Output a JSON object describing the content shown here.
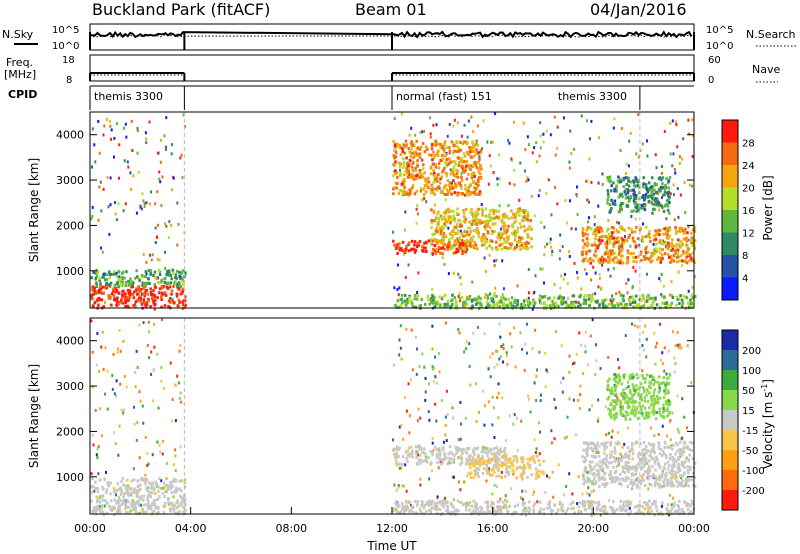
{
  "header": {
    "station_title": "Buckland Park (fitACF)",
    "beam": "Beam 01",
    "date": "04/Jan/2016"
  },
  "meta_panels": {
    "nsky_label": "N.Sky",
    "nsearch_label": "N.Search",
    "freq_label_line1": "Freq.",
    "freq_label_line2": "[MHz]",
    "nave_label": "Nave",
    "cpid_label": "CPID",
    "noise_ticks": [
      "10^5",
      "10^0"
    ],
    "freq_ticks": [
      "18",
      "8"
    ],
    "nave_ticks": [
      "60",
      "0"
    ],
    "cpid_segments": [
      {
        "start_hour": 0.0,
        "end_hour": 3.75,
        "label": "themis 3300"
      },
      {
        "start_hour": 12.0,
        "end_hour": 21.85,
        "label": "normal (fast) 151"
      },
      {
        "start_hour": 21.85,
        "end_hour": 24.0,
        "label": "themis 3300"
      }
    ]
  },
  "chart_data": [
    {
      "type": "heatmap",
      "panel": "power",
      "xlabel": "",
      "ylabel": "Slant Range [km]",
      "xlim": [
        0,
        24
      ],
      "ylim": [
        180,
        4500
      ],
      "yticks": [
        1000,
        2000,
        3000,
        4000
      ],
      "colorbar": {
        "label": "Power [dB]",
        "ticks": [
          "4",
          "8",
          "12",
          "16",
          "20",
          "24",
          "28"
        ],
        "range": [
          0,
          30
        ],
        "colors": [
          "#0a1cff",
          "#2452a6",
          "#2f8a62",
          "#5db83d",
          "#b6dd2a",
          "#f6a60c",
          "#f36a10",
          "#ff1a10"
        ]
      },
      "regions": [
        {
          "start_hour": 0.0,
          "end_hour": 3.75,
          "range_km": [
            200,
            700
          ],
          "level_db": 28
        },
        {
          "start_hour": 0.0,
          "end_hour": 3.75,
          "range_km": [
            700,
            1050
          ],
          "level_db": 12
        },
        {
          "start_hour": 12.0,
          "end_hour": 15.0,
          "range_km": [
            1400,
            1700
          ],
          "level_db": 28
        },
        {
          "start_hour": 13.5,
          "end_hour": 17.5,
          "range_km": [
            1500,
            2400
          ],
          "level_db": 20
        },
        {
          "start_hour": 19.5,
          "end_hour": 24.0,
          "range_km": [
            1200,
            2000
          ],
          "level_db": 22
        },
        {
          "start_hour": 12.0,
          "end_hour": 24.0,
          "range_km": [
            200,
            500
          ],
          "level_db": 14
        },
        {
          "start_hour": 20.5,
          "end_hour": 23.0,
          "range_km": [
            2300,
            3100
          ],
          "level_db": 10
        },
        {
          "start_hour": 12.0,
          "end_hour": 15.5,
          "range_km": [
            2700,
            3900
          ],
          "level_db": 22
        }
      ]
    },
    {
      "type": "heatmap",
      "panel": "velocity",
      "xlabel": "Time UT",
      "ylabel": "Slant Range [km]",
      "xlim": [
        0,
        24
      ],
      "ylim": [
        180,
        4500
      ],
      "yticks": [
        1000,
        2000,
        3000,
        4000
      ],
      "xticks": [
        "00:00",
        "04:00",
        "08:00",
        "12:00",
        "16:00",
        "20:00",
        "00:00"
      ],
      "colorbar": {
        "label": "Velocity [m s-1]",
        "label_main": "Velocity [m s",
        "label_sup": "-1",
        "label_end": "]",
        "ticks": [
          "-200",
          "-100",
          "-50",
          "-15",
          "15",
          "50",
          "100",
          "200"
        ],
        "range": [
          -250,
          250
        ],
        "colors": [
          "#ff1a10",
          "#ff6a10",
          "#ff9f14",
          "#f5c64a",
          "#c8c8c8",
          "#8ad84a",
          "#3caa3c",
          "#2c6a9a",
          "#1c2aa8"
        ]
      },
      "regions": [
        {
          "start_hour": 0.0,
          "end_hour": 3.75,
          "range_km": [
            200,
            1000
          ],
          "level_ms": 0
        },
        {
          "start_hour": 12.0,
          "end_hour": 16.5,
          "range_km": [
            1300,
            1700
          ],
          "level_ms": 0
        },
        {
          "start_hour": 15.0,
          "end_hour": 18.0,
          "range_km": [
            1000,
            1500
          ],
          "level_ms": -40
        },
        {
          "start_hour": 19.5,
          "end_hour": 24.0,
          "range_km": [
            800,
            1800
          ],
          "level_ms": 0
        },
        {
          "start_hour": 20.5,
          "end_hour": 23.0,
          "range_km": [
            2300,
            3300
          ],
          "level_ms": 60
        },
        {
          "start_hour": 12.0,
          "end_hour": 24.0,
          "range_km": [
            200,
            500
          ],
          "level_ms": 0
        }
      ]
    }
  ]
}
